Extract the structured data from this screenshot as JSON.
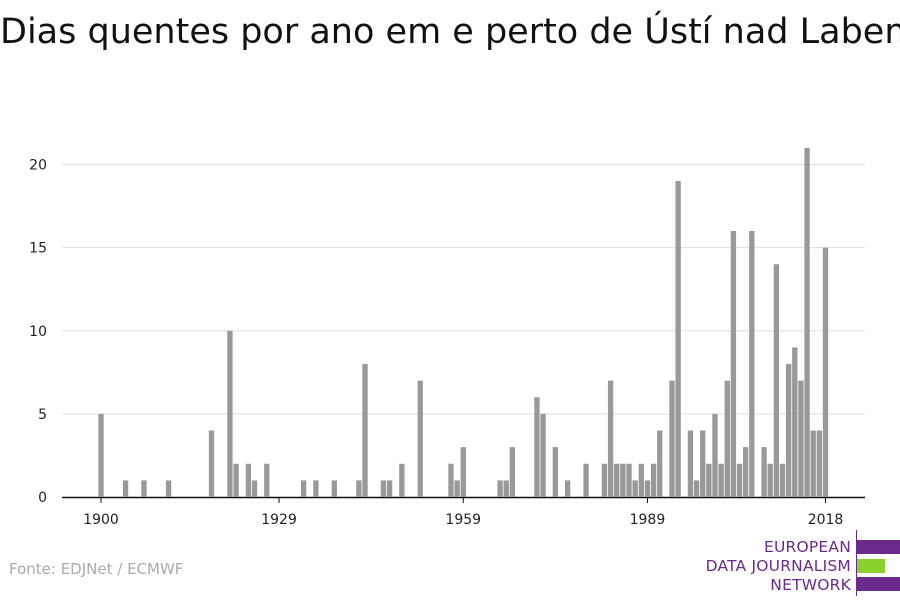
{
  "chart_data": {
    "type": "bar",
    "title": "Dias quentes por ano em e perto de Ústí nad Labem",
    "xlabel": "",
    "ylabel": "",
    "xlim": [
      1894,
      2024
    ],
    "ylim": [
      0,
      22
    ],
    "yticks": [
      0,
      5,
      10,
      15,
      20
    ],
    "xticks": [
      1900,
      1929,
      1959,
      1989,
      2018
    ],
    "grid": true,
    "bar_color": "#999999",
    "x": [
      1900,
      1904,
      1907,
      1911,
      1918,
      1921,
      1922,
      1924,
      1925,
      1927,
      1933,
      1935,
      1938,
      1942,
      1943,
      1946,
      1947,
      1949,
      1952,
      1957,
      1958,
      1959,
      1965,
      1966,
      1967,
      1971,
      1972,
      1974,
      1976,
      1979,
      1982,
      1983,
      1984,
      1985,
      1986,
      1987,
      1988,
      1989,
      1990,
      1991,
      1993,
      1994,
      1996,
      1997,
      1998,
      1999,
      2000,
      2001,
      2002,
      2003,
      2004,
      2005,
      2006,
      2008,
      2009,
      2010,
      2011,
      2012,
      2013,
      2014,
      2015,
      2016,
      2017,
      2018
    ],
    "values": [
      5,
      1,
      1,
      1,
      4,
      10,
      2,
      2,
      1,
      2,
      1,
      1,
      1,
      1,
      8,
      1,
      1,
      2,
      7,
      2,
      1,
      3,
      1,
      1,
      3,
      6,
      5,
      3,
      1,
      2,
      2,
      7,
      2,
      2,
      2,
      1,
      2,
      1,
      2,
      4,
      7,
      19,
      4,
      1,
      4,
      2,
      5,
      2,
      7,
      16,
      2,
      3,
      16,
      3,
      2,
      14,
      2,
      8,
      9,
      7,
      21,
      4,
      4,
      15
    ]
  },
  "source": "Fonte: EDJNet / ECMWF",
  "logo": {
    "line1": "EUROPEAN",
    "line2": "DATA JOURNALISM",
    "line3": "NETWORK",
    "colors": {
      "purple": "#6a2a8c",
      "green": "#8bd12d"
    }
  }
}
